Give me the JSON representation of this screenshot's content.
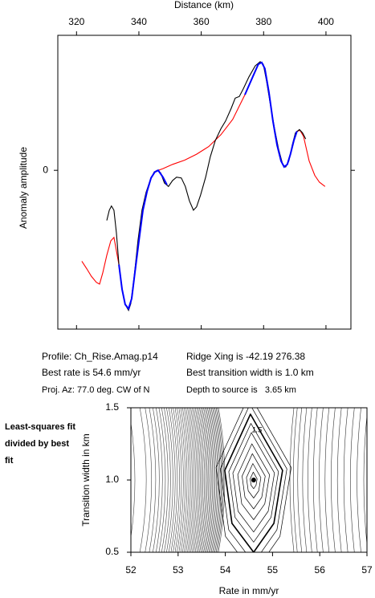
{
  "chart_data": [
    {
      "type": "line",
      "x_label": "Distance (km)",
      "y_label": "Anomaly amplitude",
      "xlim": [
        314,
        408
      ],
      "xticks": [
        320,
        340,
        360,
        380,
        400
      ],
      "ylim": [
        -1.87,
        1.59
      ],
      "yticks": [
        0
      ],
      "series": [
        {
          "color": "#000000",
          "x": [
            329.7,
            330.5,
            331.2,
            332.0,
            332.8,
            333.6,
            334.6,
            335.6,
            336.7,
            337.4,
            338.5,
            339.7,
            341.0,
            342.3,
            343.6,
            344.9,
            345.9,
            347.0,
            348.2,
            349.5,
            350.8,
            352.1,
            353.6,
            354.9,
            356.2,
            357.5,
            358.5,
            359.8,
            361.4,
            362.9,
            364.5,
            366.3,
            367.8,
            369.6,
            370.9,
            372.2,
            373.5,
            375.3,
            377.3,
            378.9,
            379.9,
            380.9,
            382.2,
            383.5,
            384.8,
            386.1,
            387.1,
            388.1,
            389.2,
            390.2,
            391.5,
            392.5,
            393.5
          ],
          "values": [
            -0.59,
            -0.47,
            -0.42,
            -0.47,
            -0.74,
            -1.11,
            -1.4,
            -1.58,
            -1.65,
            -1.57,
            -1.25,
            -0.83,
            -0.47,
            -0.26,
            -0.12,
            -0.02,
            0,
            -0.03,
            -0.15,
            -0.19,
            -0.12,
            -0.08,
            -0.09,
            -0.19,
            -0.36,
            -0.47,
            -0.43,
            -0.29,
            -0.08,
            0.16,
            0.35,
            0.49,
            0.58,
            0.73,
            0.85,
            0.87,
            0.96,
            1.1,
            1.23,
            1.28,
            1.25,
            1.06,
            0.77,
            0.49,
            0.25,
            0.07,
            0.04,
            0.11,
            0.3,
            0.44,
            0.48,
            0.44,
            0.37
          ]
        },
        {
          "color": "#ff0000",
          "x": [
            321.7,
            323.3,
            324.8,
            326.4,
            327.4,
            328.4,
            329.7,
            331.0,
            332.0,
            333.6,
            334.6,
            335.6,
            336.7,
            337.7,
            338.7,
            340.0,
            341.3,
            342.6,
            343.9,
            345.1,
            346.2,
            347.7,
            350.8,
            354.7,
            358.5,
            362.4,
            366.3,
            370.1,
            374.0,
            376.5,
            378.3,
            379.4,
            380.4,
            381.7,
            383.0,
            384.3,
            385.6,
            386.6,
            387.6,
            388.6,
            389.7,
            390.7,
            391.7,
            392.8,
            394.6,
            396.4,
            397.9,
            399.7
          ],
          "values": [
            -1.07,
            -1.16,
            -1.25,
            -1.32,
            -1.34,
            -1.21,
            -1.0,
            -0.83,
            -0.79,
            -1.11,
            -1.4,
            -1.58,
            -1.63,
            -1.51,
            -1.21,
            -0.83,
            -0.47,
            -0.25,
            -0.09,
            -0.02,
            0,
            0.02,
            0.07,
            0.12,
            0.19,
            0.28,
            0.42,
            0.6,
            0.89,
            1.1,
            1.25,
            1.27,
            1.2,
            0.92,
            0.58,
            0.3,
            0.11,
            0.04,
            0.07,
            0.19,
            0.35,
            0.46,
            0.47,
            0.4,
            0.11,
            -0.06,
            -0.14,
            -0.19
          ]
        },
        {
          "color": "#0000ff",
          "x": [
            333.6,
            334.6,
            335.6,
            336.7,
            337.7,
            338.7,
            340.0,
            341.3,
            342.6,
            343.9,
            345.1,
            346.2,
            347.7,
            349.0,
            360.0,
            374.0,
            376.5,
            378.3,
            379.4,
            380.4,
            381.7,
            383.0,
            384.3,
            385.6,
            386.6,
            387.6,
            388.6,
            389.7,
            390.7
          ],
          "values": [
            -1.11,
            -1.4,
            -1.58,
            -1.63,
            -1.51,
            -1.21,
            -0.83,
            -0.47,
            -0.25,
            -0.09,
            -0.02,
            0,
            -0.08,
            -0.17,
            null,
            0.89,
            1.1,
            1.25,
            1.27,
            1.2,
            0.92,
            0.58,
            0.3,
            0.11,
            0.04,
            0.07,
            0.19,
            0.35,
            0.46
          ]
        }
      ]
    },
    {
      "type": "contour",
      "side_label": "Least-squares fit divided by best fit",
      "x_label": "Rate in mm/yr",
      "y_label": "Transition width in km",
      "xlim": [
        52,
        57
      ],
      "xticks": [
        52,
        53,
        54,
        55,
        56,
        57
      ],
      "ylim": [
        0.5,
        1.5
      ],
      "yticks": [
        0.5,
        {
          "value": 1,
          "label": "1.0"
        },
        1.5
      ],
      "best_fit": {
        "x": 54.6,
        "y": 1.0
      },
      "contour_label": "1.5"
    }
  ],
  "info": [
    "Profile: Ch_Rise.Amag.p14",
    "Ridge Xing is -42.19 276.38",
    "Best rate is 54.6 mm/yr",
    "Best transition width is 1.0 km",
    "Proj. Az: 77.0 deg. CW of N",
    "Depth to source is   3.65 km"
  ]
}
